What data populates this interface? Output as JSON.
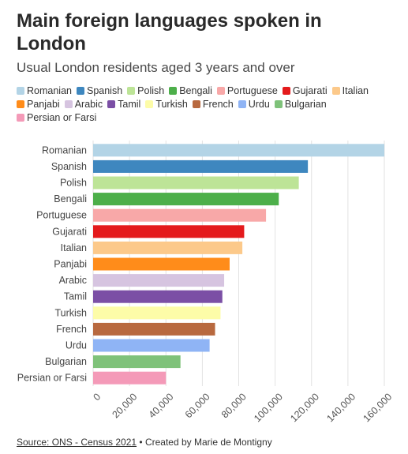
{
  "header": {
    "title": "Main foreign languages spoken in London",
    "subtitle": "Usual London residents aged 3 years and over"
  },
  "chart_data": {
    "type": "bar",
    "orientation": "horizontal",
    "categories": [
      "Romanian",
      "Spanish",
      "Polish",
      "Bengali",
      "Portuguese",
      "Gujarati",
      "Italian",
      "Panjabi",
      "Arabic",
      "Tamil",
      "Turkish",
      "French",
      "Urdu",
      "Bulgarian",
      "Persian or Farsi"
    ],
    "values": [
      160000,
      118000,
      113000,
      102000,
      95000,
      83000,
      82000,
      75000,
      72000,
      71000,
      70000,
      67000,
      64000,
      48000,
      40000
    ],
    "colors": [
      "#b3d4e6",
      "#3e87bf",
      "#bde497",
      "#4daf4a",
      "#f8a8a8",
      "#e41a1c",
      "#fcc98a",
      "#ff8c1a",
      "#d6c4e0",
      "#7b4fa5",
      "#fdfca8",
      "#b8693f",
      "#8fb4f5",
      "#7fc27a",
      "#f49ab8"
    ],
    "x_ticks": [
      "0",
      "20,000",
      "40,000",
      "60,000",
      "80,000",
      "100,000",
      "120,000",
      "140,000",
      "160,000"
    ],
    "xlim": [
      0,
      160000
    ],
    "grid": "vertical",
    "legend": "top"
  },
  "footer": {
    "source": "Source: ONS - Census 2021",
    "credit": " • Created by Marie de Montigny"
  }
}
